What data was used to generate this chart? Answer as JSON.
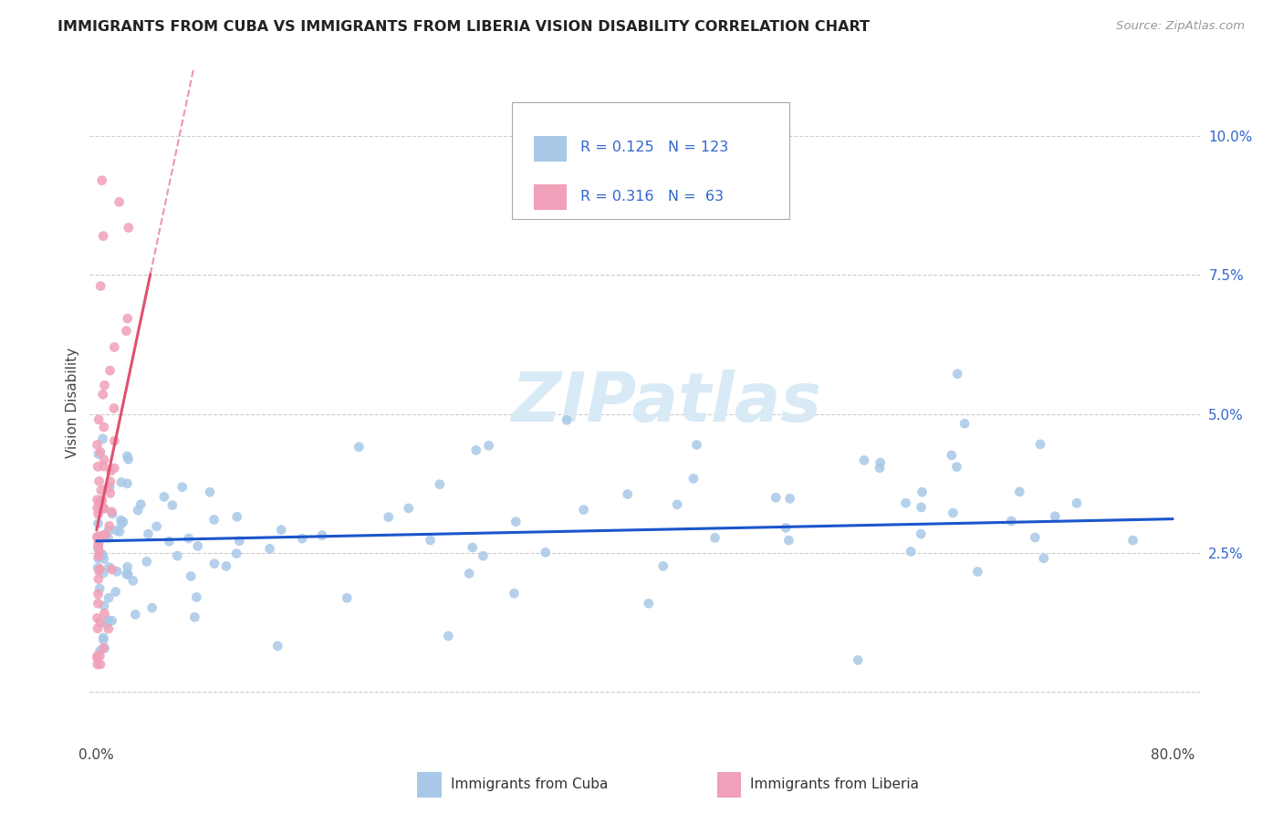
{
  "title": "IMMIGRANTS FROM CUBA VS IMMIGRANTS FROM LIBERIA VISION DISABILITY CORRELATION CHART",
  "source": "Source: ZipAtlas.com",
  "ylabel": "Vision Disability",
  "x_ticks": [
    0.0,
    0.1,
    0.2,
    0.3,
    0.4,
    0.5,
    0.6,
    0.7,
    0.8
  ],
  "x_tick_labels": [
    "0.0%",
    "",
    "",
    "",
    "",
    "",
    "",
    "",
    "80.0%"
  ],
  "y_ticks": [
    0.0,
    0.025,
    0.05,
    0.075,
    0.1
  ],
  "y_tick_labels": [
    "",
    "2.5%",
    "5.0%",
    "7.5%",
    "10.0%"
  ],
  "xlim": [
    -0.005,
    0.82
  ],
  "ylim": [
    -0.008,
    0.112
  ],
  "cuba_R": 0.125,
  "cuba_N": 123,
  "liberia_R": 0.316,
  "liberia_N": 63,
  "cuba_color": "#a8c8e8",
  "liberia_color": "#f0a0b8",
  "cuba_line_color": "#1a55cc",
  "liberia_line_color": "#e05070",
  "legend_text_color": "#3366cc",
  "watermark_color": "#d8eaf5",
  "watermark": "ZIPatlas",
  "legend_label_cuba": "Immigrants from Cuba",
  "legend_label_liberia": "Immigrants from Liberia",
  "background_color": "#ffffff",
  "grid_color": "#cccccc",
  "title_color": "#222222",
  "source_color": "#999999",
  "ylabel_color": "#444444"
}
